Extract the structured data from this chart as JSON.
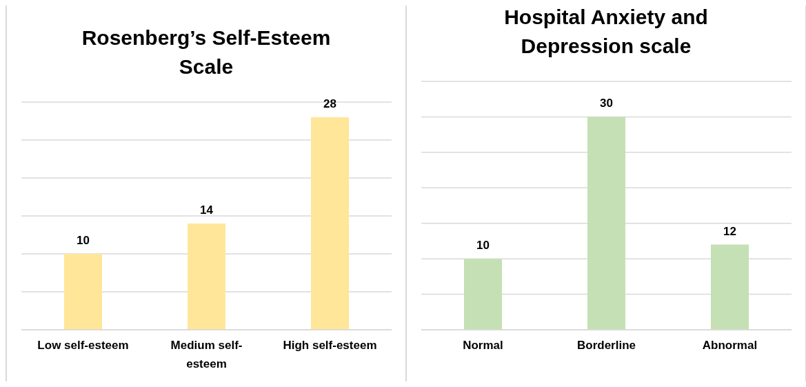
{
  "chart_data": [
    {
      "type": "bar",
      "title": "Rosenberg’s Self-Esteem Scale",
      "categories": [
        "Low self-esteem",
        "Medium self-esteem",
        "High self-esteem"
      ],
      "values": [
        10,
        14,
        28
      ],
      "color": "#ffe699",
      "ylim": [
        0,
        30
      ],
      "yticks": [
        {
          "value": 0,
          "label": null
        },
        {
          "value": 5,
          "label": null
        },
        {
          "value": 10,
          "label": null
        },
        {
          "value": 15,
          "label": null
        },
        {
          "value": 20,
          "label": null
        },
        {
          "value": 25,
          "label": null
        },
        {
          "value": 30,
          "label": null
        }
      ],
      "grid": "y",
      "data_labels": true,
      "tick_labels": "x"
    },
    {
      "type": "bar",
      "title": "Hospital Anxiety and Depression scale",
      "categories": [
        "Normal",
        "Borderline",
        "Abnormal"
      ],
      "values": [
        10,
        30,
        12
      ],
      "color": "#c5e0b4",
      "ylim": [
        0,
        35
      ],
      "yticks": [
        {
          "value": 0,
          "label": null
        },
        {
          "value": 5,
          "label": null
        },
        {
          "value": 10,
          "label": null
        },
        {
          "value": 15,
          "label": null
        },
        {
          "value": 20,
          "label": null
        },
        {
          "value": 25,
          "label": null
        },
        {
          "value": 30,
          "label": null
        },
        {
          "value": 35,
          "label": null
        }
      ],
      "grid": "y",
      "data_labels": true,
      "tick_labels": "x"
    }
  ]
}
